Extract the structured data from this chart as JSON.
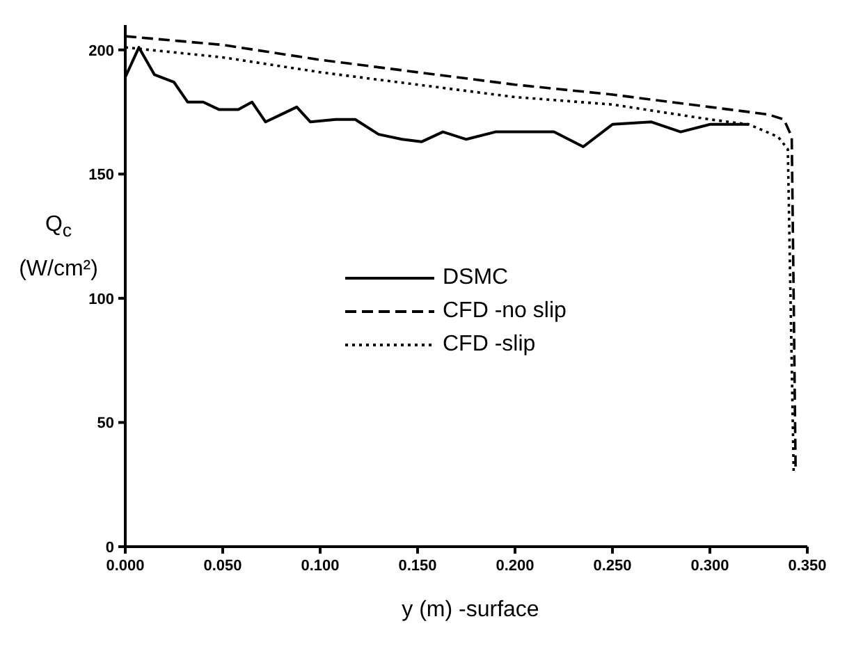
{
  "chart_data": {
    "type": "line",
    "xlabel": "y (m) -surface",
    "ylabel": "Q$_{c}$ (W/cm²)",
    "xlim": [
      0,
      0.35
    ],
    "ylim": [
      0,
      210
    ],
    "xticks": [
      {
        "value": 0,
        "label": "0.000"
      },
      {
        "value": 0.05,
        "label": "0.050"
      },
      {
        "value": 0.1,
        "label": "0.100"
      },
      {
        "value": 0.15,
        "label": "0.150"
      },
      {
        "value": 0.2,
        "label": "0.200"
      },
      {
        "value": 0.25,
        "label": "0.250"
      },
      {
        "value": 0.3,
        "label": "0.300"
      },
      {
        "value": 0.35,
        "label": "0.350"
      }
    ],
    "yticks": [
      0,
      50,
      100,
      150,
      200
    ],
    "grid": false,
    "legend": "center",
    "marker": "none",
    "series": [
      {
        "name": "DSMC",
        "color": "#000000",
        "line_style": "solid",
        "x": [
          0,
          0.007,
          0.015,
          0.025,
          0.032,
          0.04,
          0.048,
          0.058,
          0.065,
          0.072,
          0.08,
          0.088,
          0.095,
          0.108,
          0.118,
          0.13,
          0.142,
          0.152,
          0.163,
          0.175,
          0.19,
          0.2,
          0.22,
          0.235,
          0.25,
          0.27,
          0.285,
          0.3,
          0.32
        ],
        "values": [
          189,
          201,
          190,
          187,
          179,
          179,
          176,
          176,
          179,
          171,
          174,
          177,
          171,
          172,
          172,
          166,
          164,
          163,
          167,
          164,
          167,
          167,
          167,
          161,
          170,
          171,
          167,
          170,
          170
        ]
      },
      {
        "name": "CFD -no slip",
        "color": "#000000",
        "line_style": "dashed",
        "x": [
          0,
          0.05,
          0.1,
          0.15,
          0.2,
          0.25,
          0.3,
          0.33,
          0.338,
          0.342,
          0.343,
          0.344
        ],
        "values": [
          205.5,
          202,
          196,
          191,
          186,
          182,
          177,
          174,
          172,
          165,
          100,
          30
        ]
      },
      {
        "name": "CFD -slip",
        "color": "#000000",
        "line_style": "dotted",
        "x": [
          0,
          0.05,
          0.1,
          0.15,
          0.2,
          0.25,
          0.3,
          0.32,
          0.335,
          0.34,
          0.343
        ],
        "values": [
          201,
          197,
          191,
          186,
          181,
          178,
          172,
          170,
          165,
          160,
          30
        ]
      }
    ]
  }
}
